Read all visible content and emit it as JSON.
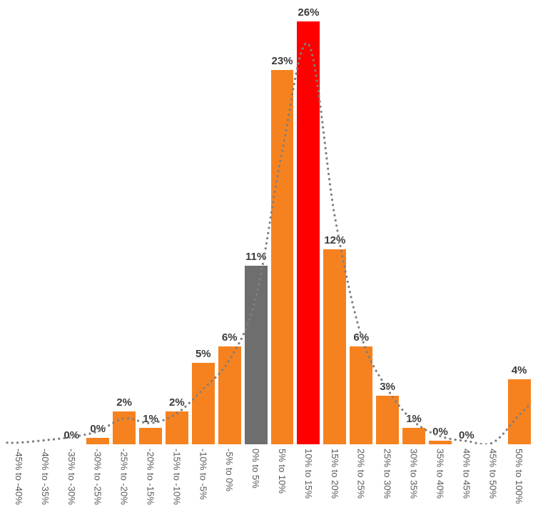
{
  "chart_data": {
    "type": "bar",
    "title": "",
    "xlabel": "",
    "ylabel": "",
    "ylim": [
      0,
      27
    ],
    "grid": false,
    "legend": null,
    "categories": [
      "-45% to -40%",
      "-40% to -35%",
      "-35% to -30%",
      "-30% to -25%",
      "-25% to -20%",
      "-20% to -15%",
      "-15% to -10%",
      "-10% to -5%",
      "-5% to 0%",
      "0% to 5%",
      "5% to 10%",
      "10% to 15%",
      "15% to 20%",
      "20% to 25%",
      "25% to 30%",
      "30% to 35%",
      "35% to 40%",
      "40% to 45%",
      "45% to 50%",
      "50% to 100%"
    ],
    "values": [
      0,
      0,
      0,
      0,
      2,
      1,
      2,
      5,
      6,
      11,
      23,
      26,
      12,
      6,
      3,
      1,
      0,
      0,
      0,
      4
    ],
    "bar_labels": [
      "",
      "",
      "0%",
      "0%",
      "2%",
      "1%",
      "2%",
      "5%",
      "6%",
      "11%",
      "23%",
      "26%",
      "12%",
      "6%",
      "3%",
      "1%",
      "0%",
      "0%",
      "",
      "4%"
    ],
    "bar_heights_pct": [
      0,
      0,
      0,
      0.4,
      2,
      1,
      2,
      5,
      6,
      11,
      23,
      26,
      12,
      6,
      3,
      1,
      0.2,
      0,
      0,
      4
    ],
    "bar_roles": [
      "default",
      "default",
      "default",
      "default",
      "default",
      "default",
      "default",
      "default",
      "default",
      "neutral",
      "default",
      "highlight",
      "default",
      "default",
      "default",
      "default",
      "default",
      "default",
      "default",
      "default"
    ],
    "trend_series": {
      "name": "distribution-fit-dotted-line",
      "values": [
        0.1,
        0.1,
        0.25,
        0.45,
        0.8,
        1.6,
        1.3,
        1.9,
        3.4,
        5.2,
        9.0,
        18.0,
        24.6,
        14.0,
        6.7,
        3.4,
        1.4,
        0.5,
        0.2,
        0.1,
        1.8,
        2.5
      ]
    },
    "colors": {
      "bar_default": "#F6821F",
      "bar_neutral": "#6E6E6E",
      "bar_highlight": "#FE0000",
      "trend": "#7F7F7F",
      "value_label": "#3B3B3B",
      "axis_label": "#595959",
      "background": "#FFFFFF"
    }
  }
}
